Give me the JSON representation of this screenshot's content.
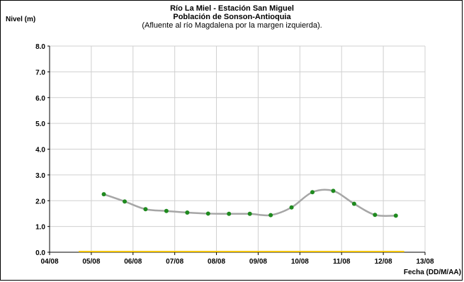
{
  "chart_data": {
    "type": "line",
    "title_lines": [
      "Río La Miel  - Estación San Miguel",
      "Población de Sonson-Antioquia",
      "(Afluente al río Magdalena por la margen izquierda)."
    ],
    "ylabel": "Nivel (m)",
    "xlabel": "Fecha (DD/M/AA)",
    "x_ticks": [
      "04/08",
      "05/08",
      "06/08",
      "07/08",
      "08/08",
      "09/08",
      "10/08",
      "11/08",
      "12/08",
      "13/08"
    ],
    "y_ticks": [
      "0.0",
      "1.0",
      "2.0",
      "3.0",
      "4.0",
      "5.0",
      "6.0",
      "7.0",
      "8.0"
    ],
    "xlim": [
      4,
      13
    ],
    "ylim": [
      0,
      8
    ],
    "grid": true,
    "series": [
      {
        "points": [
          {
            "x": 5.3,
            "y": 2.25
          },
          {
            "x": 5.8,
            "y": 1.97
          },
          {
            "x": 6.3,
            "y": 1.67
          },
          {
            "x": 6.8,
            "y": 1.6
          },
          {
            "x": 7.3,
            "y": 1.54
          },
          {
            "x": 7.8,
            "y": 1.5
          },
          {
            "x": 8.3,
            "y": 1.49
          },
          {
            "x": 8.8,
            "y": 1.49
          },
          {
            "x": 9.3,
            "y": 1.44
          },
          {
            "x": 9.8,
            "y": 1.74
          },
          {
            "x": 10.3,
            "y": 2.33
          },
          {
            "x": 10.8,
            "y": 2.38
          },
          {
            "x": 11.3,
            "y": 1.88
          },
          {
            "x": 11.8,
            "y": 1.45
          },
          {
            "x": 12.3,
            "y": 1.42
          }
        ],
        "marker_color": "#1f8a1f",
        "line_color": "#a6a6a6"
      }
    ],
    "threshold": {
      "y": 0.0,
      "x_start": 4.7,
      "x_end": 12.5,
      "color": "#f2c400"
    }
  }
}
